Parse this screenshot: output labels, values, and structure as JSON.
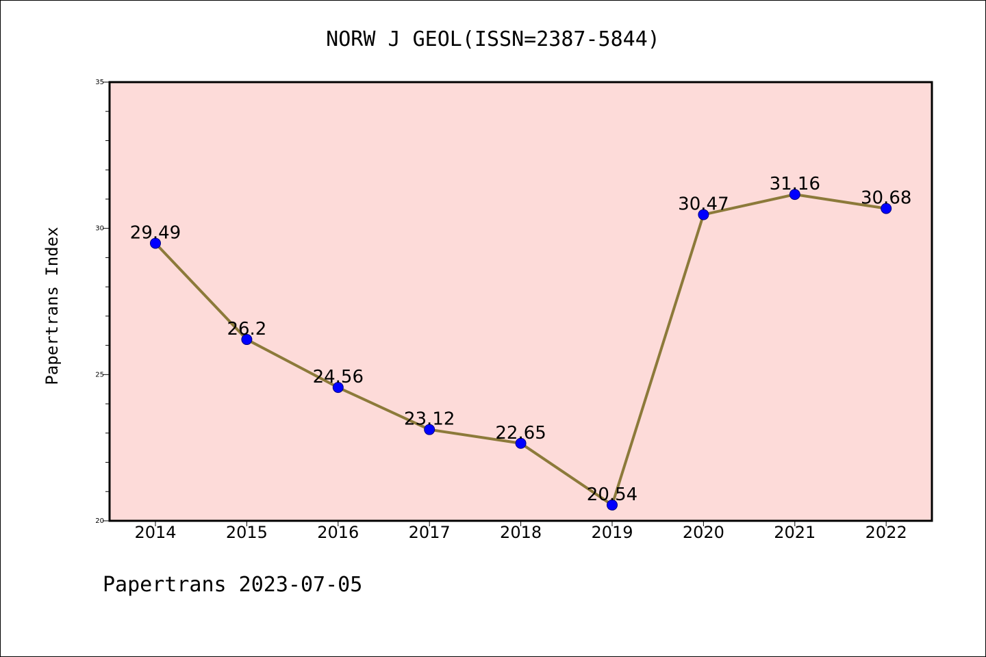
{
  "chart_data": {
    "type": "line",
    "title": "NORW J GEOL(ISSN=2387-5844)",
    "ylabel": "Papertrans Index",
    "xlabel": "",
    "footer": "Papertrans 2023-07-05",
    "categories": [
      "2014",
      "2015",
      "2016",
      "2017",
      "2018",
      "2019",
      "2020",
      "2021",
      "2022"
    ],
    "values": [
      29.49,
      26.2,
      24.56,
      23.12,
      22.65,
      20.54,
      30.47,
      31.16,
      30.68
    ],
    "data_labels": [
      "29.49",
      "26.2",
      "24.56",
      "23.12",
      "22.65",
      "20.54",
      "30.47",
      "31.16",
      "30.68"
    ],
    "ylim": [
      20,
      35
    ],
    "yticks": [
      20,
      25,
      30,
      35
    ],
    "ytick_labels": [
      "20",
      "25",
      "30",
      "35"
    ],
    "grid": false,
    "colors": {
      "plot_background": "#fddbd9",
      "line": "#8c7a3a",
      "marker": "#0000ff"
    }
  }
}
